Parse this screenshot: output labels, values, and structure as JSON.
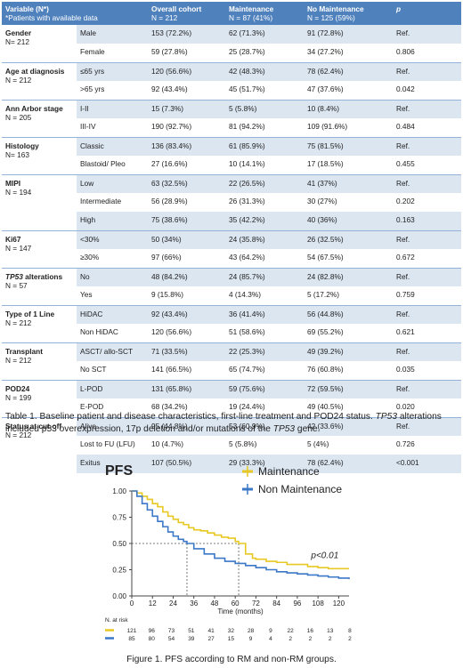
{
  "table": {
    "headers": {
      "variable": "Variable (N*)",
      "variable_sub": "*Patients with available data",
      "overall": "Overall cohort",
      "overall_sub": "N = 212",
      "maintenance": "Maintenance",
      "maintenance_sub": "N = 87 (41%)",
      "no_maintenance": "No Maintenance",
      "no_maintenance_sub": "N = 125 (59%)",
      "p": "p"
    },
    "groups": [
      {
        "name": "Gender",
        "n": "N= 212",
        "italic": false,
        "rows": [
          {
            "sub": "Male",
            "overall": "153 (72.2%)",
            "m": "62 (71.3%)",
            "nm": "91 (72.8%)",
            "p": "Ref."
          },
          {
            "sub": "Female",
            "overall": "59 (27.8%)",
            "m": "25 (28.7%)",
            "nm": "34 (27.2%)",
            "p": "0.806"
          }
        ]
      },
      {
        "name": "Age at diagnosis",
        "n": "N = 212",
        "italic": false,
        "rows": [
          {
            "sub": "≤65 yrs",
            "overall": "120 (56.6%)",
            "m": "42 (48.3%)",
            "nm": "78 (62.4%)",
            "p": "Ref."
          },
          {
            "sub": ">65 yrs",
            "overall": "92 (43.4%)",
            "m": "45 (51.7%)",
            "nm": "47 (37.6%)",
            "p": "0.042"
          }
        ]
      },
      {
        "name": "Ann Arbor stage",
        "n": "N = 205",
        "italic": false,
        "rows": [
          {
            "sub": "I-II",
            "overall": "15 (7.3%)",
            "m": "5 (5.8%)",
            "nm": "10 (8.4%)",
            "p": "Ref."
          },
          {
            "sub": "III-IV",
            "overall": "190 (92.7%)",
            "m": "81 (94.2%)",
            "nm": "109 (91.6%)",
            "p": "0.484"
          }
        ]
      },
      {
        "name": "Histology",
        "n": "N= 163",
        "italic": false,
        "rows": [
          {
            "sub": "Classic",
            "overall": "136 (83.4%)",
            "m": "61 (85.9%)",
            "nm": "75 (81.5%)",
            "p": "Ref."
          },
          {
            "sub": "Blastoid/ Pleo",
            "overall": "27 (16.6%)",
            "m": "10 (14.1%)",
            "nm": "17 (18.5%)",
            "p": "0.455"
          }
        ]
      },
      {
        "name": "MIPI",
        "n": "N = 194",
        "italic": false,
        "rows": [
          {
            "sub": "Low",
            "overall": "63 (32.5%)",
            "m": "22 (26.5%)",
            "nm": "41 (37%)",
            "p": "Ref."
          },
          {
            "sub": "Intermediate",
            "overall": "56 (28.9%)",
            "m": "26 (31.3%)",
            "nm": "30 (27%)",
            "p": "0.202"
          },
          {
            "sub": "High",
            "overall": "75 (38.6%)",
            "m": "35 (42.2%)",
            "nm": "40 (36%)",
            "p": "0.163"
          }
        ]
      },
      {
        "name": "Ki67",
        "n": "N = 147",
        "italic": false,
        "rows": [
          {
            "sub": "<30%",
            "overall": "50 (34%)",
            "m": "24 (35.8%)",
            "nm": "26 (32.5%)",
            "p": "Ref."
          },
          {
            "sub": "≥30%",
            "overall": "97 (66%)",
            "m": "43 (64.2%)",
            "nm": "54 (67.5%)",
            "p": "0.672"
          }
        ]
      },
      {
        "name": "TP53",
        "name_rest": " alterations",
        "n": "N = 57",
        "italic": true,
        "rows": [
          {
            "sub": "No",
            "overall": "48 (84.2%)",
            "m": "24 (85.7%)",
            "nm": "24 (82.8%)",
            "p": "Ref."
          },
          {
            "sub": "Yes",
            "overall": "9 (15.8%)",
            "m": "4 (14.3%)",
            "nm": "5 (17.2%)",
            "p": "0.759"
          }
        ]
      },
      {
        "name": "Type of 1 Line",
        "n": "N = 212",
        "italic": false,
        "rows": [
          {
            "sub": "HiDAC",
            "overall": "92 (43.4%)",
            "m": "36 (41.4%)",
            "nm": "56 (44.8%)",
            "p": "Ref."
          },
          {
            "sub": "Non HiDAC",
            "overall": "120 (56.6%)",
            "m": "51 (58.6%)",
            "nm": "69 (55.2%)",
            "p": "0.621"
          }
        ]
      },
      {
        "name": "Transplant",
        "n": "N = 212",
        "italic": false,
        "rows": [
          {
            "sub": "ASCT/ allo-SCT",
            "overall": "71 (33.5%)",
            "m": "22 (25.3%)",
            "nm": "49 (39.2%)",
            "p": "Ref."
          },
          {
            "sub": "No SCT",
            "overall": "141 (66.5%)",
            "m": "65 (74.7%)",
            "nm": "76 (60.8%)",
            "p": "0.035"
          }
        ]
      },
      {
        "name": "POD24",
        "n": "N = 199",
        "italic": false,
        "rows": [
          {
            "sub": "L-POD",
            "overall": "131 (65.8%)",
            "m": "59 (75.6%)",
            "nm": "72 (59.5%)",
            "p": "Ref."
          },
          {
            "sub": "E-POD",
            "overall": "68 (34.2%)",
            "m": "19 (24.4%)",
            "nm": "49 (40.5%)",
            "p": "0.020"
          }
        ]
      },
      {
        "name": "Status at cut-off",
        "n": "N = 212",
        "italic": false,
        "rows": [
          {
            "sub": "Alive",
            "overall": "95 (44.8%)",
            "m": "53 (60.9%)",
            "nm": "42 (33.6%)",
            "p": "Ref."
          },
          {
            "sub": "Lost to FU (LFU)",
            "overall": "10 (4.7%)",
            "m": "5 (5.8%)",
            "nm": "5 (4%)",
            "p": "0.726"
          },
          {
            "sub": "Exitus",
            "overall": "107 (50.5%)",
            "m": "29 (33.3%)",
            "nm": "78 (62.4%)",
            "p": "<0.001"
          }
        ]
      }
    ]
  },
  "caption": {
    "pre": "Table 1. Baseline patient and disease characteristics, first-line treatment and POD24 status. ",
    "tp53_a": "TP53",
    "mid": " alterations included p53 overexpression, 17p deletion and/or mutations of the ",
    "tp53_b": "TP53",
    "post": " gene."
  },
  "figure_caption": "Figure 1. PFS according to RM and non-RM groups.",
  "colors": {
    "header_bg": "#4f81bd",
    "row_shade": "#dce6f1",
    "maintenance": "#e8c823",
    "non_maintenance": "#3b78c7"
  },
  "chart_data": {
    "type": "line",
    "title": "PFS",
    "xlabel": "Time (months)",
    "ylabel": "",
    "xlim": [
      0,
      126
    ],
    "ylim": [
      0,
      1.0
    ],
    "xticks": [
      0,
      12,
      24,
      36,
      48,
      60,
      72,
      84,
      96,
      108,
      120
    ],
    "yticks": [
      "0.00",
      "0.25",
      "0.50",
      "0.75",
      "1.00"
    ],
    "annotation": "p<0.01",
    "median_reference": {
      "y": 0.5,
      "x_marks": [
        32,
        62
      ]
    },
    "legend_position": "top-right",
    "series": [
      {
        "name": "Maintenance",
        "color": "#e8c823",
        "step": true,
        "x": [
          0,
          3,
          6,
          9,
          12,
          15,
          18,
          21,
          24,
          27,
          30,
          33,
          36,
          40,
          44,
          48,
          52,
          56,
          60,
          62,
          66,
          70,
          72,
          78,
          84,
          90,
          96,
          102,
          108,
          114,
          120,
          126
        ],
        "y": [
          1.0,
          0.98,
          0.95,
          0.92,
          0.88,
          0.85,
          0.8,
          0.76,
          0.73,
          0.7,
          0.68,
          0.65,
          0.63,
          0.62,
          0.6,
          0.58,
          0.56,
          0.55,
          0.52,
          0.5,
          0.4,
          0.36,
          0.35,
          0.33,
          0.32,
          0.3,
          0.3,
          0.28,
          0.27,
          0.26,
          0.26,
          0.26
        ]
      },
      {
        "name": "Non Maintenance",
        "color": "#3b78c7",
        "step": true,
        "x": [
          0,
          3,
          6,
          9,
          12,
          15,
          18,
          21,
          24,
          27,
          30,
          32,
          36,
          42,
          48,
          54,
          60,
          66,
          72,
          78,
          84,
          90,
          96,
          102,
          108,
          114,
          120,
          126
        ],
        "y": [
          1.0,
          0.95,
          0.88,
          0.82,
          0.76,
          0.71,
          0.66,
          0.61,
          0.57,
          0.54,
          0.52,
          0.5,
          0.45,
          0.4,
          0.36,
          0.33,
          0.31,
          0.29,
          0.27,
          0.25,
          0.23,
          0.22,
          0.21,
          0.2,
          0.19,
          0.18,
          0.17,
          0.16
        ]
      }
    ],
    "at_risk": {
      "label": "N. at risk",
      "rows": [
        {
          "series": "Maintenance",
          "values": [
            "121",
            "96",
            "73",
            "51",
            "41",
            "32",
            "28",
            "9",
            "22",
            "16",
            "13",
            "8"
          ]
        },
        {
          "series": "Non Maintenance",
          "values": [
            "85",
            "80",
            "54",
            "39",
            "27",
            "15",
            "9",
            "4",
            "2",
            "2",
            "2",
            "2"
          ]
        }
      ]
    }
  }
}
